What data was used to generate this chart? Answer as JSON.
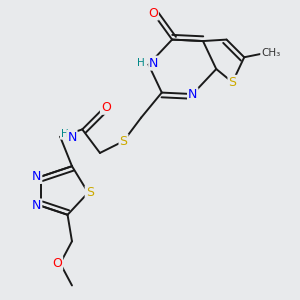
{
  "bg_color": "#e8eaec",
  "bond_color": "#1a1a1a",
  "bond_width": 1.4,
  "dbo": 0.016,
  "atom_colors": {
    "N": "#0000ff",
    "O": "#ff0000",
    "S": "#ccaa00",
    "H": "#008888"
  },
  "fontsize": 8.5
}
